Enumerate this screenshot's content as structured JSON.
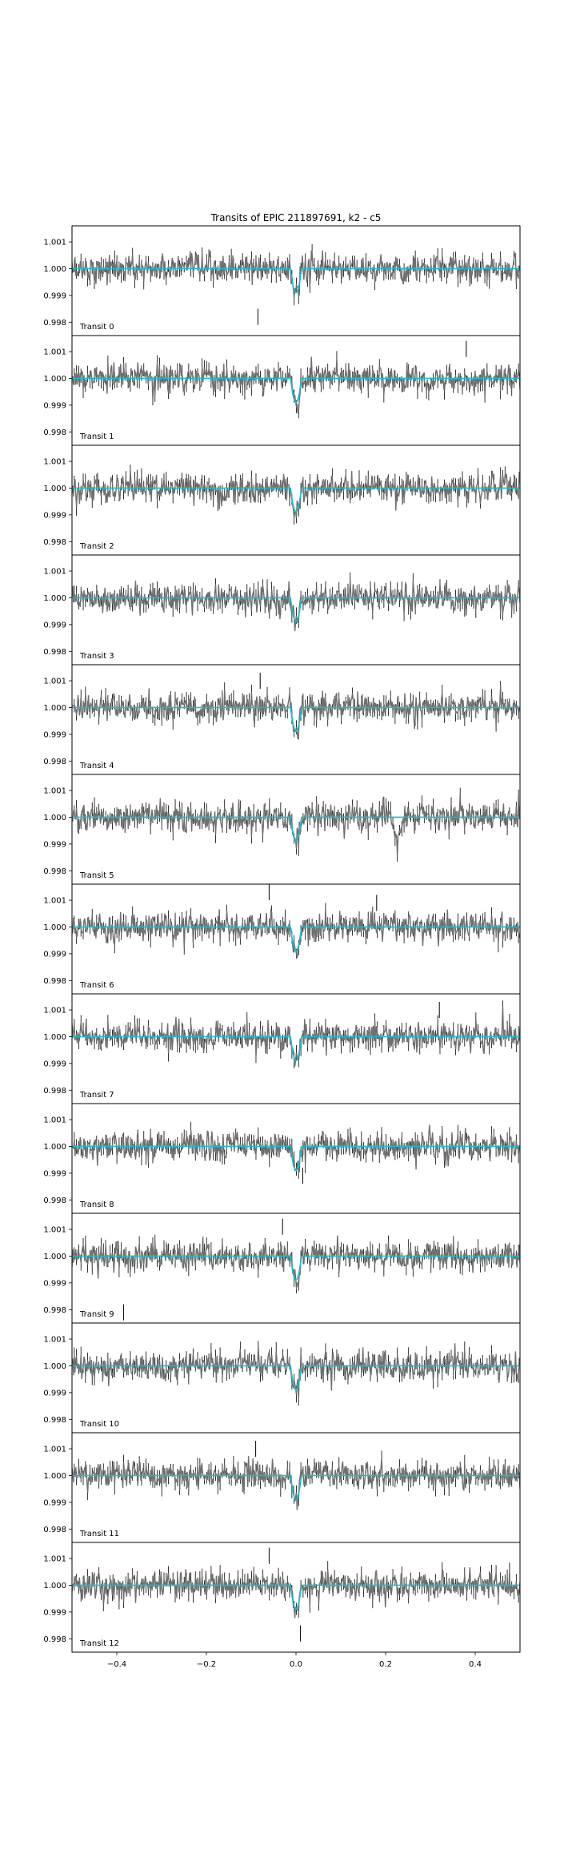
{
  "chart_data": {
    "type": "line",
    "title": "Transits of EPIC 211897691, k2 - c5",
    "xlabel": "",
    "ylabel": "",
    "xlim": [
      -0.5,
      0.5
    ],
    "ylim": [
      0.9975,
      1.0016
    ],
    "xticks": [
      -0.4,
      -0.2,
      0.0,
      0.2,
      0.4
    ],
    "xtick_labels": [
      "−0.4",
      "−0.2",
      "0.0",
      "0.2",
      "0.4"
    ],
    "yticks": [
      1.001,
      1.0,
      0.999,
      0.998
    ],
    "ytick_labels": [
      "1.001",
      "1.000",
      "0.999",
      "0.998"
    ],
    "grid": false,
    "colors": {
      "data": "#6f6f6f",
      "errorbar": "#000000",
      "model": "#17becf",
      "frame": "#000000"
    },
    "noise_sigma": 0.00025,
    "model": {
      "baseline": 1.0,
      "center": 0.0,
      "depth": 0.0009,
      "half_width": 0.012
    },
    "panels": [
      {
        "label": "Transit 0",
        "outliers": [
          [
            -0.085,
            0.9982
          ]
        ],
        "features": []
      },
      {
        "label": "Transit 1",
        "outliers": [
          [
            0.38,
            1.0011
          ]
        ],
        "features": []
      },
      {
        "label": "Transit 2",
        "outliers": [],
        "features": [
          {
            "x": -0.17,
            "depth": 0.0006,
            "width": 0.01
          }
        ]
      },
      {
        "label": "Transit 3",
        "outliers": [],
        "features": []
      },
      {
        "label": "Transit 4",
        "outliers": [
          [
            -0.08,
            1.001
          ]
        ],
        "features": []
      },
      {
        "label": "Transit 5",
        "outliers": [],
        "features": [
          {
            "x": 0.225,
            "depth": 0.0009,
            "width": 0.012
          }
        ]
      },
      {
        "label": "Transit 6",
        "outliers": [
          [
            -0.06,
            1.0013
          ],
          [
            0.18,
            1.0009
          ]
        ],
        "features": []
      },
      {
        "label": "Transit 7",
        "outliers": [
          [
            0.32,
            1.001
          ]
        ],
        "features": []
      },
      {
        "label": "Transit 8",
        "outliers": [
          [
            0.015,
            0.9989
          ]
        ],
        "features": []
      },
      {
        "label": "Transit 9",
        "outliers": [
          [
            -0.03,
            1.0011
          ],
          [
            -0.385,
            0.9979
          ]
        ],
        "features": []
      },
      {
        "label": "Transit 10",
        "outliers": [],
        "features": []
      },
      {
        "label": "Transit 11",
        "outliers": [
          [
            -0.09,
            1.001
          ]
        ],
        "features": []
      },
      {
        "label": "Transit 12",
        "outliers": [
          [
            -0.06,
            1.0011
          ],
          [
            0.01,
            0.9982
          ]
        ],
        "features": []
      }
    ]
  }
}
